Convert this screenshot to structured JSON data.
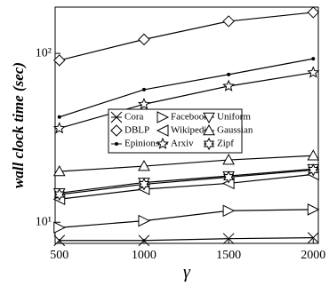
{
  "chart_data": {
    "type": "line",
    "y_label": "wall clock time (sec)",
    "x_label": "γ",
    "x": [
      500,
      1000,
      1500,
      2000
    ],
    "xlim": [
      475,
      2030
    ],
    "xticks": [
      500,
      1000,
      1500,
      2000
    ],
    "ylim": [
      7.5,
      188
    ],
    "yticks": [
      {
        "value": 10,
        "label": "10¹"
      },
      {
        "value": 100,
        "label": "10²"
      }
    ],
    "y_scale": "log",
    "legend_position": "center",
    "series": [
      {
        "name": "Cora",
        "color": "#000000",
        "marker": "x",
        "values": [
          7.8,
          7.8,
          8.0,
          8.1
        ]
      },
      {
        "name": "Facebook",
        "color": "#000000",
        "marker": "triangle-right",
        "values": [
          9.3,
          10.2,
          11.7,
          11.9
        ]
      },
      {
        "name": "Uniform",
        "color": "#000000",
        "marker": "triangle-down",
        "values": [
          14.9,
          17.2,
          18.8,
          20.7
        ]
      },
      {
        "name": "DBLP",
        "color": "#000000",
        "marker": "diamond",
        "values": [
          91,
          121,
          155,
          175
        ]
      },
      {
        "name": "Wikipedia",
        "color": "#000000",
        "marker": "triangle-left",
        "values": [
          13.7,
          15.7,
          17.0,
          19.2
        ]
      },
      {
        "name": "Gaussian",
        "color": "#000000",
        "marker": "triangle-up",
        "values": [
          20,
          21.5,
          23.4,
          24.8
        ]
      },
      {
        "name": "Epinions",
        "color": "#000000",
        "marker": "dot",
        "values": [
          42,
          61,
          75,
          93
        ]
      },
      {
        "name": "Arxiv",
        "color": "#000000",
        "marker": "star",
        "values": [
          36,
          50,
          64,
          77
        ]
      },
      {
        "name": "Zipf",
        "color": "#000000",
        "marker": "star6",
        "values": [
          14.6,
          16.8,
          18.5,
          20.4
        ]
      }
    ]
  }
}
